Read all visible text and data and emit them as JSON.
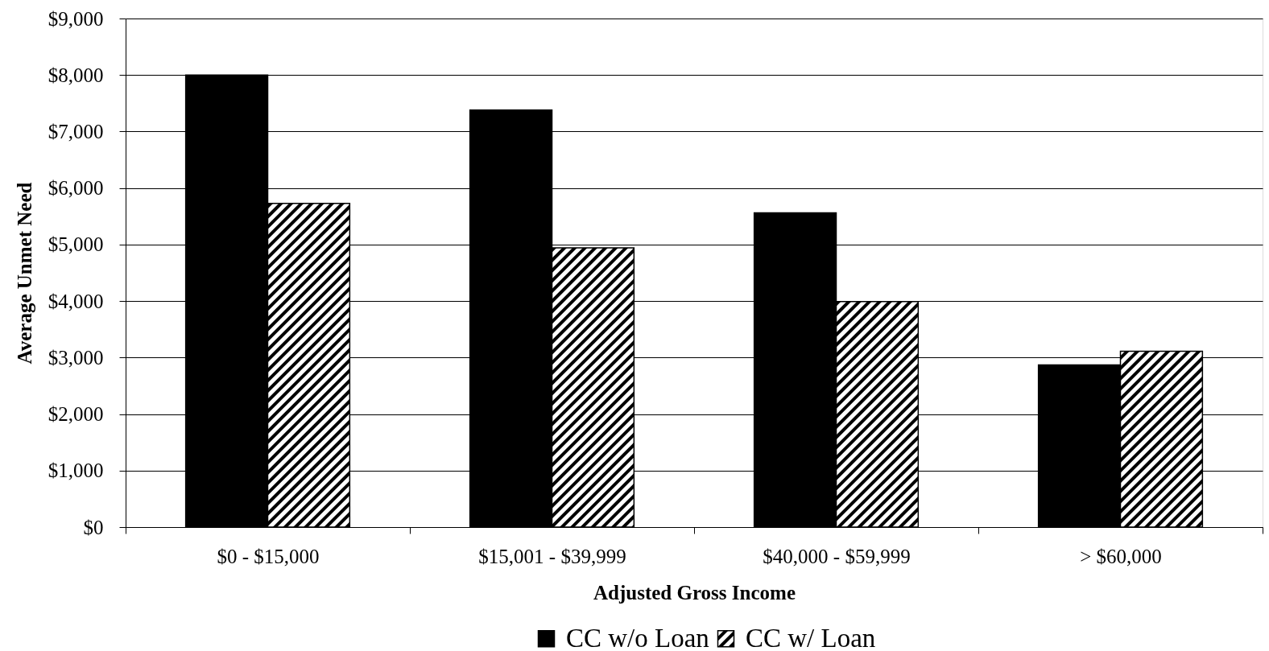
{
  "chart_data": {
    "type": "bar",
    "xlabel": "Adjusted Gross Income",
    "ylabel": "Average Unmet Need",
    "categories": [
      "$0 - $15,000",
      "$15,001 - $39,999",
      "$40,000 - $59,999",
      "> $60,000"
    ],
    "series": [
      {
        "name": "CC w/o Loan",
        "color": "#000000",
        "values": [
          8000,
          7380,
          5560,
          2870
        ]
      },
      {
        "name": "CC w/ Loan",
        "color": "#000000",
        "values": [
          5730,
          4940,
          3990,
          3110
        ]
      }
    ],
    "ylim": [
      0,
      9000
    ],
    "yticks": [
      {
        "value": 0,
        "label": "$0"
      },
      {
        "value": 1000,
        "label": "$1,000"
      },
      {
        "value": 2000,
        "label": "$2,000"
      },
      {
        "value": 3000,
        "label": "$3,000"
      },
      {
        "value": 4000,
        "label": "$4,000"
      },
      {
        "value": 5000,
        "label": "$5,000"
      },
      {
        "value": 6000,
        "label": "$6,000"
      },
      {
        "value": 7000,
        "label": "$7,000"
      },
      {
        "value": 8000,
        "label": "$8,000"
      },
      {
        "value": 9000,
        "label": "$9,000"
      }
    ],
    "grid": "y",
    "legend": "bottom"
  }
}
